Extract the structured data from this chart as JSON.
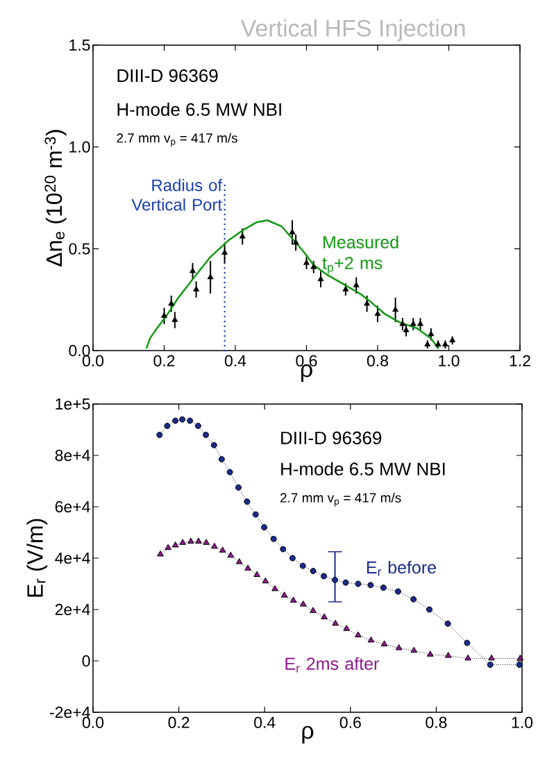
{
  "chart_data": [
    {
      "type": "scatter",
      "title": "Vertical HFS Injection",
      "xlabel": "ρ",
      "ylabel": "Δn$_{e}$ (10$^{20}$ m$^{-3}$)",
      "annotations": [
        "DIII-D    96369",
        "H-mode 6.5 MW NBI",
        "2.7 mm   v$_{p}$ = 417 m/s"
      ],
      "xlim": [
        0,
        1.2
      ],
      "ylim": [
        0,
        1.5
      ],
      "xticks": [
        {
          "value": 0,
          "label": "0.0"
        },
        {
          "value": 0.2,
          "label": "0.2"
        },
        {
          "value": 0.4,
          "label": "0.4"
        },
        {
          "value": 0.6,
          "label": "0.6"
        },
        {
          "value": 0.8,
          "label": "0.8"
        },
        {
          "value": 1,
          "label": "1.0"
        },
        {
          "value": 1.2,
          "label": "1.2"
        }
      ],
      "yticks": [
        {
          "value": 0,
          "label": "0.0"
        },
        {
          "value": 0.5,
          "label": "0.5"
        },
        {
          "value": 1,
          "label": "1.0"
        },
        {
          "value": 1.5,
          "label": "1.5"
        }
      ],
      "ref_lines": [
        {
          "axis": "x",
          "value": 0.37,
          "label": "Radius of Vertical Port",
          "color": "#1a3fb0",
          "line_style": "dotted"
        }
      ],
      "series": [
        {
          "type": "scatter",
          "marker": "triangle",
          "color": "#000000",
          "x": [
            0.2,
            0.22,
            0.23,
            0.28,
            0.29,
            0.33,
            0.37,
            0.42,
            0.56,
            0.57,
            0.6,
            0.62,
            0.64,
            0.71,
            0.74,
            0.77,
            0.8,
            0.85,
            0.87,
            0.88,
            0.9,
            0.92,
            0.95,
            0.94,
            0.97,
            0.99,
            1.01
          ],
          "values": [
            0.17,
            0.23,
            0.15,
            0.39,
            0.3,
            0.36,
            0.48,
            0.56,
            0.58,
            0.53,
            0.43,
            0.41,
            0.35,
            0.3,
            0.32,
            0.23,
            0.18,
            0.2,
            0.13,
            0.1,
            0.13,
            0.13,
            0.08,
            0.03,
            0.03,
            0.03,
            0.05
          ],
          "errors": [
            0.04,
            0.04,
            0.04,
            0.04,
            0.04,
            0.08,
            0.05,
            0.04,
            0.06,
            0.04,
            0.03,
            0.03,
            0.04,
            0.03,
            0.04,
            0.04,
            0.04,
            0.06,
            0.03,
            0.03,
            0.03,
            0.03,
            0.03,
            0.02,
            0.02,
            0.02,
            0.02
          ]
        },
        {
          "type": "line",
          "name": "Measured t$_{p}$+2 ms",
          "color": "#119911",
          "marker": "none",
          "line_style": "solid",
          "x": [
            0.15,
            0.16,
            0.18,
            0.21,
            0.24,
            0.28,
            0.33,
            0.38,
            0.42,
            0.46,
            0.49,
            0.53,
            0.55,
            0.59,
            0.62,
            0.66,
            0.71,
            0.75,
            0.78,
            0.82,
            0.86,
            0.91,
            0.95,
            0.97
          ],
          "values": [
            0.01,
            0.06,
            0.11,
            0.18,
            0.26,
            0.35,
            0.46,
            0.54,
            0.59,
            0.63,
            0.64,
            0.61,
            0.57,
            0.49,
            0.42,
            0.37,
            0.32,
            0.28,
            0.24,
            0.18,
            0.14,
            0.11,
            0.06,
            0.01
          ]
        }
      ]
    },
    {
      "type": "line",
      "xlabel": "ρ",
      "ylabel": "E$_{r}$ (V/m)",
      "annotations": [
        "DIII-D    96369",
        "H-mode 6.5 MW NBI",
        "2.7 mm   v$_{p}$ = 417 m/s"
      ],
      "xlim": [
        0,
        1
      ],
      "ylim": [
        -20000,
        100000
      ],
      "xticks": [
        {
          "value": 0,
          "label": "0.0"
        },
        {
          "value": 0.2,
          "label": "0.2"
        },
        {
          "value": 0.4,
          "label": "0.4"
        },
        {
          "value": 0.6,
          "label": "0.6"
        },
        {
          "value": 0.8,
          "label": "0.8"
        },
        {
          "value": 1,
          "label": "1.0"
        }
      ],
      "yticks": [
        {
          "value": -20000,
          "label": "-2e+4"
        },
        {
          "value": 0,
          "label": "0"
        },
        {
          "value": 20000,
          "label": "2e+4"
        },
        {
          "value": 40000,
          "label": "4e+4"
        },
        {
          "value": 60000,
          "label": "6e+4"
        },
        {
          "value": 80000,
          "label": "8e+4"
        },
        {
          "value": 100000,
          "label": "1e+5"
        }
      ],
      "series": [
        {
          "name": "E$_{r}$ before",
          "color": "#1a2a8c",
          "marker": "circle",
          "line_style": "dotted",
          "x": [
            0.155,
            0.173,
            0.192,
            0.208,
            0.226,
            0.245,
            0.263,
            0.282,
            0.3,
            0.319,
            0.339,
            0.359,
            0.379,
            0.399,
            0.421,
            0.443,
            0.465,
            0.489,
            0.513,
            0.538,
            0.564,
            0.589,
            0.618,
            0.647,
            0.677,
            0.711,
            0.747,
            0.784,
            0.827,
            0.872,
            0.926,
            0.994
          ],
          "values": [
            88000,
            91500,
            93500,
            94000,
            93500,
            91500,
            88000,
            84000,
            78500,
            73500,
            67500,
            62000,
            57000,
            52000,
            47500,
            43500,
            40000,
            37000,
            35000,
            33000,
            31500,
            30500,
            30000,
            29500,
            28500,
            27000,
            24000,
            20000,
            14500,
            7000,
            -1500,
            -1500
          ],
          "errors": [
            null,
            null,
            null,
            null,
            null,
            null,
            null,
            null,
            null,
            null,
            null,
            null,
            null,
            null,
            null,
            null,
            null,
            null,
            null,
            null,
            [
              23000,
              42500
            ],
            null,
            null,
            null,
            null,
            null,
            null,
            null,
            null,
            null,
            null,
            null
          ]
        },
        {
          "name": "E$_{r}$  2ms after",
          "color": "#8b1a8b",
          "marker": "triangle",
          "line_style": "dotted",
          "x": [
            0.157,
            0.175,
            0.192,
            0.209,
            0.228,
            0.246,
            0.264,
            0.283,
            0.302,
            0.321,
            0.341,
            0.361,
            0.382,
            0.402,
            0.424,
            0.446,
            0.467,
            0.49,
            0.513,
            0.539,
            0.565,
            0.591,
            0.618,
            0.648,
            0.679,
            0.713,
            0.748,
            0.786,
            0.828,
            0.874,
            0.929,
            0.996
          ],
          "values": [
            41500,
            44000,
            45000,
            46000,
            46500,
            46500,
            46000,
            44500,
            43000,
            41000,
            38500,
            36000,
            33500,
            31000,
            28000,
            25500,
            23500,
            22000,
            19500,
            17000,
            14500,
            12500,
            10000,
            8000,
            6500,
            5000,
            4000,
            2500,
            2000,
            1000,
            1000,
            1000
          ]
        }
      ]
    }
  ]
}
